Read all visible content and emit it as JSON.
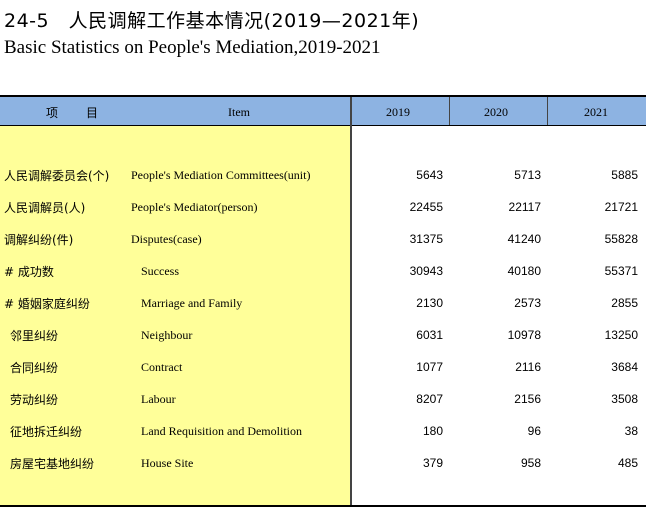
{
  "title_cn": "24-5　人民调解工作基本情况(2019—2021年)",
  "title_en": "Basic Statistics on People's Mediation,2019-2021",
  "header": {
    "item_cn": "项　目",
    "item_en": "Item",
    "years": [
      "2019",
      "2020",
      "2021"
    ]
  },
  "rows": [
    {
      "cn": "人民调解委员会(个)",
      "en": "People's Mediation Committees(unit)",
      "values": [
        "5643",
        "5713",
        "5885"
      ]
    },
    {
      "cn": "人民调解员(人)",
      "en": "People's Mediator(person)",
      "values": [
        "22455",
        "22117",
        "21721"
      ]
    },
    {
      "cn": "调解纠纷(件)",
      "en": "Disputes(case)",
      "values": [
        "31375",
        "41240",
        "55828"
      ]
    },
    {
      "cn": "# 成功数",
      "en": "Success",
      "values": [
        "30943",
        "40180",
        "55371"
      ]
    },
    {
      "cn": "# 婚姻家庭纠纷",
      "en": "Marriage and Family",
      "values": [
        "2130",
        "2573",
        "2855"
      ]
    },
    {
      "cn": "邻里纠纷",
      "en": "Neighbour",
      "values": [
        "6031",
        "10978",
        "13250"
      ]
    },
    {
      "cn": "合同纠纷",
      "en": "Contract",
      "values": [
        "1077",
        "2116",
        "3684"
      ]
    },
    {
      "cn": "劳动纠纷",
      "en": "Labour",
      "values": [
        "8207",
        "2156",
        "3508"
      ]
    },
    {
      "cn": "征地拆迁纠纷",
      "en": "Land Requisition and Demolition",
      "values": [
        "180",
        "96",
        "38"
      ]
    },
    {
      "cn": "房屋宅基地纠纷",
      "en": "House Site",
      "values": [
        "379",
        "958",
        "485"
      ]
    }
  ]
}
